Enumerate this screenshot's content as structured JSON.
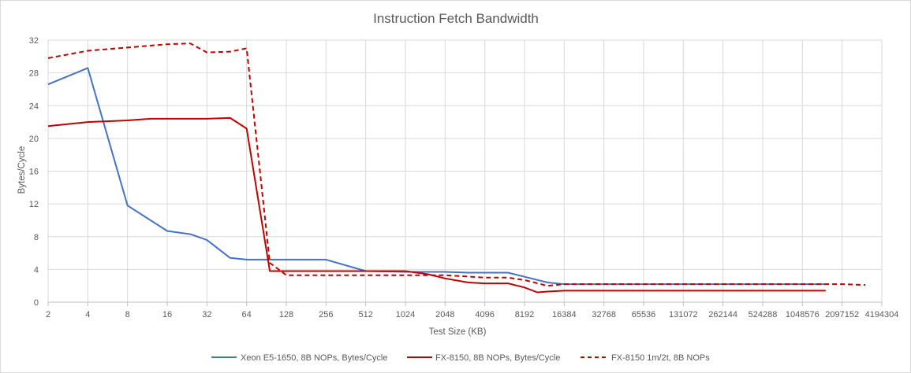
{
  "chart_data": {
    "type": "line",
    "title": "Instruction Fetch Bandwidth",
    "xlabel": "Test Size (KB)",
    "ylabel": "Bytes/Cycle",
    "ylim": [
      0,
      32
    ],
    "yticks": [
      "0",
      "4",
      "8",
      "12",
      "16",
      "20",
      "24",
      "28",
      "32"
    ],
    "x_scale": "log2",
    "xticks": [
      "2",
      "4",
      "8",
      "16",
      "32",
      "64",
      "128",
      "256",
      "512",
      "1024",
      "2048",
      "4096",
      "8192",
      "16384",
      "32768",
      "65536",
      "131072",
      "262144",
      "524288",
      "1048576",
      "2097152",
      "4194304"
    ],
    "grid": true,
    "legend_position": "bottom",
    "series": [
      {
        "name": "Xeon E5-1650, 8B NOPs, Bytes/Cycle",
        "color": "#4472c4",
        "dash": "solid",
        "points": [
          [
            2,
            26.6
          ],
          [
            4,
            28.6
          ],
          [
            8,
            11.8
          ],
          [
            16,
            8.7
          ],
          [
            24,
            8.3
          ],
          [
            32,
            7.6
          ],
          [
            48,
            5.4
          ],
          [
            64,
            5.2
          ],
          [
            96,
            5.2
          ],
          [
            128,
            5.2
          ],
          [
            256,
            5.2
          ],
          [
            512,
            3.8
          ],
          [
            1024,
            3.7
          ],
          [
            2048,
            3.7
          ],
          [
            3072,
            3.6
          ],
          [
            6144,
            3.6
          ],
          [
            8192,
            3.1
          ],
          [
            12288,
            2.4
          ],
          [
            16384,
            2.2
          ],
          [
            32768,
            2.2
          ],
          [
            65536,
            2.2
          ],
          [
            131072,
            2.2
          ],
          [
            262144,
            2.2
          ],
          [
            524288,
            2.2
          ],
          [
            1048576,
            2.2
          ],
          [
            1572864,
            2.2
          ]
        ]
      },
      {
        "name": "FX-8150, 8B NOPs, Bytes/Cycle",
        "color": "#c00000",
        "dash": "solid",
        "points": [
          [
            2,
            21.5
          ],
          [
            4,
            22.0
          ],
          [
            8,
            22.2
          ],
          [
            12,
            22.4
          ],
          [
            16,
            22.4
          ],
          [
            32,
            22.4
          ],
          [
            48,
            22.5
          ],
          [
            64,
            21.2
          ],
          [
            96,
            3.8
          ],
          [
            128,
            3.8
          ],
          [
            256,
            3.8
          ],
          [
            512,
            3.8
          ],
          [
            1024,
            3.8
          ],
          [
            1536,
            3.4
          ],
          [
            2048,
            2.9
          ],
          [
            3072,
            2.4
          ],
          [
            4096,
            2.3
          ],
          [
            6144,
            2.3
          ],
          [
            8192,
            1.8
          ],
          [
            10240,
            1.2
          ],
          [
            12288,
            1.3
          ],
          [
            16384,
            1.4
          ],
          [
            32768,
            1.4
          ],
          [
            65536,
            1.4
          ],
          [
            131072,
            1.4
          ],
          [
            262144,
            1.4
          ],
          [
            524288,
            1.4
          ],
          [
            1048576,
            1.4
          ],
          [
            1572864,
            1.4
          ]
        ]
      },
      {
        "name": "FX-8150 1m/2t, 8B NOPs",
        "color": "#c00000",
        "dash": "dashed",
        "points": [
          [
            2,
            29.8
          ],
          [
            4,
            30.7
          ],
          [
            8,
            31.1
          ],
          [
            16,
            31.5
          ],
          [
            24,
            31.6
          ],
          [
            32,
            30.5
          ],
          [
            48,
            30.6
          ],
          [
            64,
            31.0
          ],
          [
            96,
            4.8
          ],
          [
            128,
            3.3
          ],
          [
            256,
            3.3
          ],
          [
            512,
            3.3
          ],
          [
            1024,
            3.3
          ],
          [
            2048,
            3.3
          ],
          [
            4096,
            3.0
          ],
          [
            6144,
            3.0
          ],
          [
            8192,
            2.7
          ],
          [
            12288,
            2.0
          ],
          [
            16384,
            2.2
          ],
          [
            32768,
            2.2
          ],
          [
            65536,
            2.2
          ],
          [
            131072,
            2.2
          ],
          [
            262144,
            2.2
          ],
          [
            524288,
            2.2
          ],
          [
            1048576,
            2.2
          ],
          [
            2097152,
            2.2
          ],
          [
            3145728,
            2.1
          ]
        ]
      }
    ]
  }
}
